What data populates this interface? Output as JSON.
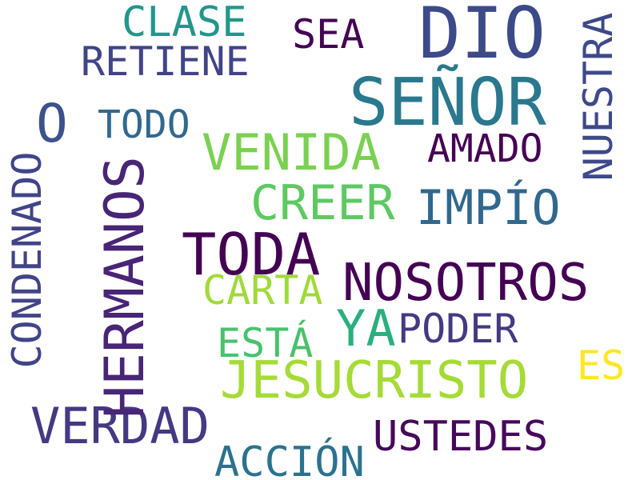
{
  "words": {
    "dio": "DIO",
    "senor": "SEÑOR",
    "clase": "CLASE",
    "sea": "SEA",
    "retiene": "RETIENE",
    "o": "O",
    "todo": "TODO",
    "venida": "VENIDA",
    "amado": "AMADO",
    "creer": "CREER",
    "impio": "IMPÍO",
    "toda": "TODA",
    "nosotros": "NOSOTROS",
    "carta": "CARTA",
    "ya": "YA",
    "poder": "PODER",
    "esta": "ESTÁ",
    "es": "ES",
    "jesucristo": "JESUCRISTO",
    "verdad": "VERDAD",
    "ustedes": "USTEDES",
    "accion": "ACCIÓN",
    "nuestra": "NUESTRA",
    "hermanos": "HERMANOS",
    "condenado": "CONDENADO"
  },
  "colors": {
    "background": "#ffffff",
    "palette": "viridis"
  }
}
